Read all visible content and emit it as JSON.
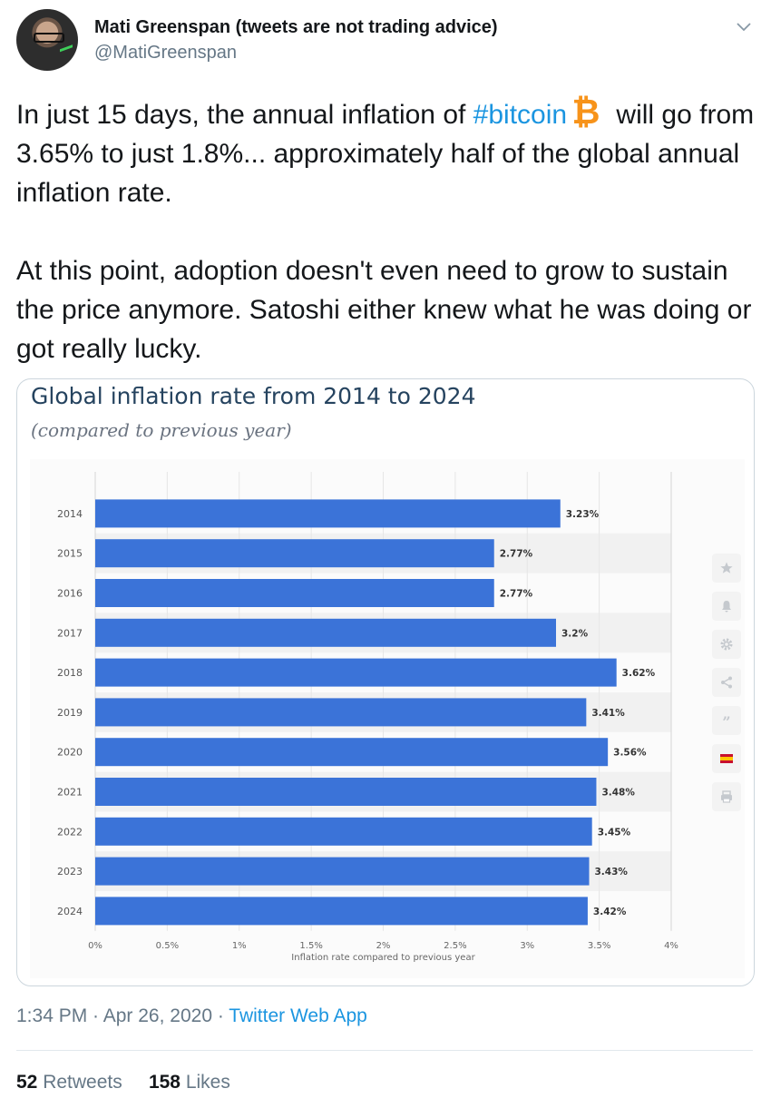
{
  "tweet": {
    "user_name": "Mati Greenspan (tweets are not trading advice)",
    "handle": "@MatiGreenspan",
    "text_part1": "In just 15 days, the annual inflation of ",
    "hashtag": "#bitcoin",
    "text_part2": " will go from 3.65% to just 1.8%... approximately half of the global annual inflation rate.\n\nAt this point, adoption doesn't even need to grow to sustain the price anymore. Satoshi either knew what he was doing or got really lucky.",
    "time": "1:34 PM",
    "date": "Apr 26, 2020",
    "app": "Twitter Web App",
    "retweets_count": "52",
    "retweets_label": "Retweets",
    "likes_count": "158",
    "likes_label": "Likes"
  },
  "icons": {
    "chevron": "chevron-down-icon",
    "bitcoin": "bitcoin-emoji-icon",
    "tools": [
      "star-icon",
      "bell-icon",
      "gear-icon",
      "share-icon",
      "quote-icon",
      "flag-spain-icon",
      "print-icon"
    ]
  },
  "colors": {
    "bar": "#3b73d8",
    "link": "#1b95e0",
    "title": "#25435f"
  },
  "chart_data": {
    "type": "bar",
    "orientation": "horizontal",
    "title": "Global inflation rate from 2014 to 2024",
    "subtitle": "(compared to previous year)",
    "xlabel": "Inflation rate compared to previous year",
    "ylabel": "",
    "categories": [
      "2014",
      "2015",
      "2016",
      "2017",
      "2018",
      "2019",
      "2020",
      "2021",
      "2022",
      "2023",
      "2024"
    ],
    "values": [
      3.23,
      2.77,
      2.77,
      3.2,
      3.62,
      3.41,
      3.56,
      3.48,
      3.45,
      3.43,
      3.42
    ],
    "value_labels": [
      "3.23%",
      "2.77%",
      "2.77%",
      "3.2%",
      "3.62%",
      "3.41%",
      "3.56%",
      "3.48%",
      "3.45%",
      "3.43%",
      "3.42%"
    ],
    "xlim": [
      0,
      4
    ],
    "xticks": [
      0,
      0.5,
      1,
      1.5,
      2,
      2.5,
      3,
      3.5,
      4
    ],
    "xtick_labels": [
      "0%",
      "0.5%",
      "1%",
      "1.5%",
      "2%",
      "2.5%",
      "3%",
      "3.5%",
      "4%"
    ],
    "grid": true,
    "legend": "none"
  }
}
